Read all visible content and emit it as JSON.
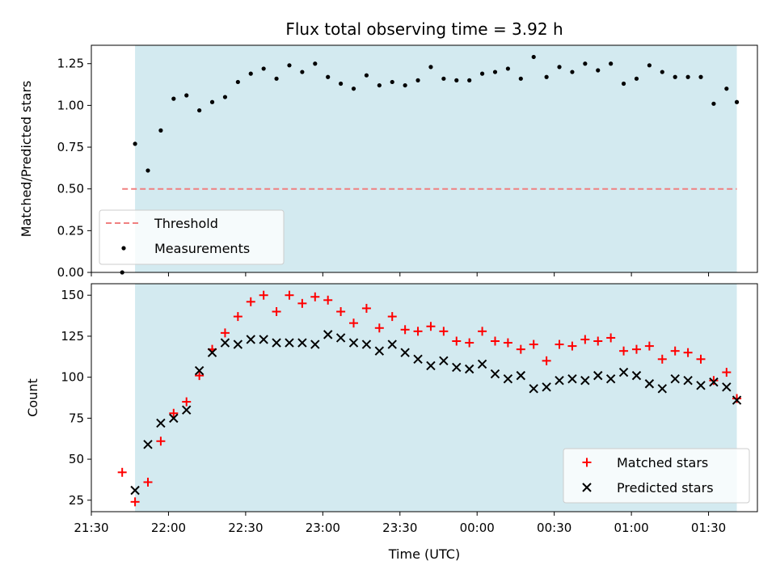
{
  "figure": {
    "title": "Flux total observing time = 3.92 h"
  },
  "chart_data": [
    {
      "type": "scatter",
      "title": "Flux total observing time = 3.92 h",
      "xlabel": "",
      "ylabel": "Matched/Predicted stars",
      "xlim": [
        "21:30",
        "01:49"
      ],
      "ylim": [
        0,
        1.36
      ],
      "yticks": [
        "0.00",
        "0.25",
        "0.50",
        "0.75",
        "1.00",
        "1.25"
      ],
      "shaded_span": [
        "21:47",
        "01:41"
      ],
      "shaded_color": "#d3eaf0",
      "grid": false,
      "legend_position": "lower-left",
      "series": [
        {
          "name": "Threshold",
          "type": "line",
          "style": "dashed",
          "color": "#f08080",
          "x": [
            "21:42",
            "01:41"
          ],
          "y": [
            0.5,
            0.5
          ]
        },
        {
          "name": "Measurements",
          "type": "scatter",
          "marker": "dot",
          "color": "#000000",
          "x": [
            "21:42",
            "21:47",
            "21:52",
            "21:57",
            "22:02",
            "22:07",
            "22:12",
            "22:17",
            "22:22",
            "22:27",
            "22:32",
            "22:37",
            "22:42",
            "22:47",
            "22:52",
            "22:57",
            "23:02",
            "23:07",
            "23:12",
            "23:17",
            "23:22",
            "23:27",
            "23:32",
            "23:37",
            "23:42",
            "23:47",
            "23:52",
            "23:57",
            "00:02",
            "00:07",
            "00:12",
            "00:17",
            "00:22",
            "00:27",
            "00:32",
            "00:37",
            "00:42",
            "00:47",
            "00:52",
            "00:57",
            "01:02",
            "01:07",
            "01:12",
            "01:17",
            "01:22",
            "01:27",
            "01:32",
            "01:37",
            "01:41"
          ],
          "y": [
            0.0,
            0.77,
            0.61,
            0.85,
            1.04,
            1.06,
            0.97,
            1.02,
            1.05,
            1.14,
            1.19,
            1.22,
            1.16,
            1.24,
            1.2,
            1.25,
            1.17,
            1.13,
            1.1,
            1.18,
            1.12,
            1.14,
            1.12,
            1.15,
            1.23,
            1.16,
            1.15,
            1.15,
            1.19,
            1.2,
            1.22,
            1.16,
            1.29,
            1.17,
            1.23,
            1.2,
            1.25,
            1.21,
            1.25,
            1.13,
            1.16,
            1.24,
            1.2,
            1.17,
            1.17,
            1.17,
            1.01,
            1.1,
            1.02
          ]
        }
      ]
    },
    {
      "type": "scatter",
      "title": "",
      "xlabel": "Time (UTC)",
      "ylabel": "Count",
      "xlim": [
        "21:30",
        "01:49"
      ],
      "ylim": [
        18,
        157
      ],
      "xticks": [
        "21:30",
        "22:00",
        "22:30",
        "23:00",
        "23:30",
        "00:00",
        "00:30",
        "01:00",
        "01:30"
      ],
      "yticks": [
        "25",
        "50",
        "75",
        "100",
        "125",
        "150"
      ],
      "shaded_span": [
        "21:47",
        "01:41"
      ],
      "shaded_color": "#d3eaf0",
      "grid": false,
      "legend_position": "lower-right",
      "series": [
        {
          "name": "Matched stars",
          "marker": "plus",
          "color": "#ff0000",
          "x": [
            "21:42",
            "21:47",
            "21:52",
            "21:57",
            "22:02",
            "22:07",
            "22:12",
            "22:17",
            "22:22",
            "22:27",
            "22:32",
            "22:37",
            "22:42",
            "22:47",
            "22:52",
            "22:57",
            "23:02",
            "23:07",
            "23:12",
            "23:17",
            "23:22",
            "23:27",
            "23:32",
            "23:37",
            "23:42",
            "23:47",
            "23:52",
            "23:57",
            "00:02",
            "00:07",
            "00:12",
            "00:17",
            "00:22",
            "00:27",
            "00:32",
            "00:37",
            "00:42",
            "00:47",
            "00:52",
            "00:57",
            "01:02",
            "01:07",
            "01:12",
            "01:17",
            "01:22",
            "01:27",
            "01:32",
            "01:37",
            "01:41"
          ],
          "y": [
            42,
            24,
            36,
            61,
            78,
            85,
            101,
            117,
            127,
            137,
            146,
            150,
            140,
            150,
            145,
            149,
            147,
            140,
            133,
            142,
            130,
            137,
            129,
            128,
            131,
            128,
            122,
            121,
            128,
            122,
            121,
            117,
            120,
            110,
            120,
            119,
            123,
            122,
            124,
            116,
            117,
            119,
            111,
            116,
            115,
            111,
            98,
            103,
            87
          ]
        },
        {
          "name": "Predicted stars",
          "marker": "x",
          "color": "#000000",
          "x": [
            "21:47",
            "21:52",
            "21:57",
            "22:02",
            "22:07",
            "22:12",
            "22:17",
            "22:22",
            "22:27",
            "22:32",
            "22:37",
            "22:42",
            "22:47",
            "22:52",
            "22:57",
            "23:02",
            "23:07",
            "23:12",
            "23:17",
            "23:22",
            "23:27",
            "23:32",
            "23:37",
            "23:42",
            "23:47",
            "23:52",
            "23:57",
            "00:02",
            "00:07",
            "00:12",
            "00:17",
            "00:22",
            "00:27",
            "00:32",
            "00:37",
            "00:42",
            "00:47",
            "00:52",
            "00:57",
            "01:02",
            "01:07",
            "01:12",
            "01:17",
            "01:22",
            "01:27",
            "01:32",
            "01:37",
            "01:41"
          ],
          "y": [
            31,
            59,
            72,
            75,
            80,
            104,
            115,
            121,
            120,
            123,
            123,
            121,
            121,
            121,
            120,
            126,
            124,
            121,
            120,
            116,
            120,
            115,
            111,
            107,
            110,
            106,
            105,
            108,
            102,
            99,
            101,
            93,
            94,
            98,
            99,
            98,
            101,
            99,
            103,
            101,
            96,
            93,
            99,
            98,
            95,
            97,
            94,
            86
          ]
        }
      ]
    }
  ]
}
